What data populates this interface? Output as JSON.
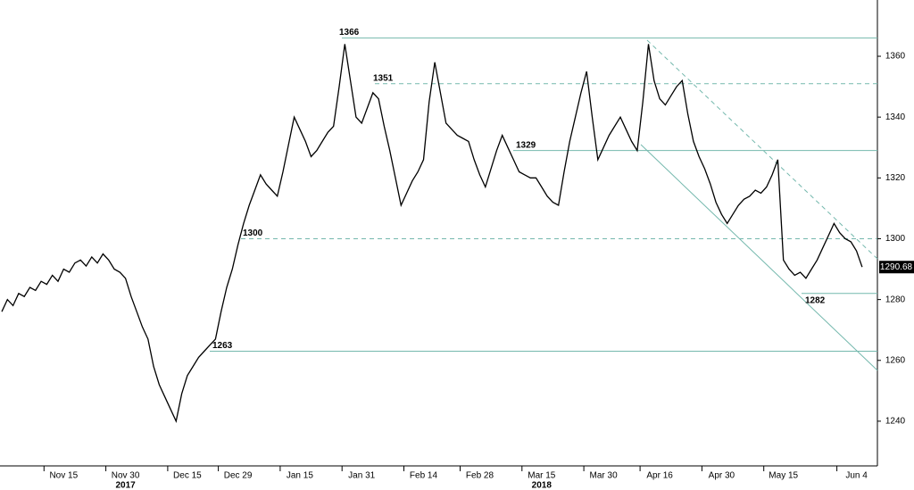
{
  "chart_data": {
    "type": "line",
    "categories": [
      null,
      null,
      null,
      null,
      null,
      null,
      null,
      null,
      null,
      null,
      null,
      "Nov 15",
      null,
      null,
      null,
      null,
      null,
      null,
      null,
      null,
      null,
      null,
      "Nov 30",
      null,
      null,
      null,
      null,
      null,
      null,
      null,
      null,
      null,
      null,
      "Dec 15",
      null,
      null,
      null,
      null,
      null,
      null,
      null,
      null,
      "Dec 29",
      null,
      null,
      null,
      null,
      null,
      null,
      null,
      null,
      null,
      null,
      "Jan 15",
      null,
      null,
      null,
      null,
      null,
      null,
      null,
      null,
      null,
      null,
      "Jan 31",
      null,
      null,
      null,
      null,
      null,
      null,
      null,
      null,
      null,
      null,
      "Feb 14",
      null,
      null,
      null,
      null,
      null,
      null,
      null,
      null,
      null,
      "Feb 28",
      null,
      null,
      null,
      null,
      null,
      null,
      null,
      null,
      null,
      null,
      "Mar 15",
      null,
      null,
      null,
      null,
      null,
      null,
      null,
      null,
      null,
      null,
      "Mar 30",
      null,
      null,
      null,
      null,
      null,
      null,
      null,
      null,
      null,
      "Apr 16",
      null,
      null,
      null,
      null,
      null,
      null,
      null,
      null,
      null,
      null,
      "Apr 30",
      null,
      null,
      null,
      null,
      null,
      null,
      null,
      null,
      null,
      null,
      "May 15",
      null,
      null,
      null,
      null,
      null,
      null,
      null,
      null,
      null,
      null,
      null,
      null,
      "Jun 4",
      null
    ],
    "year_labels": [
      "2017",
      "2018"
    ],
    "series": [
      {
        "color": "#000000",
        "values": [
          1276,
          1280,
          1278,
          1282,
          1281,
          1284,
          1283,
          1286,
          1285,
          1288,
          1286,
          1290,
          1289,
          1292,
          1293,
          1291,
          1294,
          1292,
          1295,
          1293,
          1290,
          1289,
          1287,
          1281,
          1276,
          1271,
          1267,
          1258,
          1252,
          1248,
          1244,
          1240,
          1249,
          1255,
          1258,
          1261,
          1263,
          1265,
          1267,
          1276,
          1284,
          1290,
          1298,
          1305,
          1311,
          1316,
          1321,
          1318,
          1316,
          1314,
          1322,
          1331,
          1340,
          1336,
          1332,
          1327,
          1329,
          1332,
          1335,
          1337,
          1350,
          1364,
          1352,
          1340,
          1338,
          1343,
          1348,
          1346,
          1337,
          1329,
          1320,
          1311,
          1315,
          1319,
          1322,
          1326,
          1345,
          1358,
          1348,
          1338,
          1336,
          1334,
          1333,
          1332,
          1326,
          1321,
          1317,
          1323,
          1329,
          1334,
          1330,
          1326,
          1322,
          1321,
          1320,
          1320,
          1317,
          1314,
          1312,
          1311,
          1322,
          1332,
          1340,
          1348,
          1355,
          1340,
          1326,
          1330,
          1334,
          1337,
          1340,
          1336,
          1332,
          1329,
          1345,
          1364,
          1352,
          1346,
          1344,
          1347,
          1350,
          1352,
          1341,
          1332,
          1327,
          1323,
          1318,
          1312,
          1308,
          1305,
          1308,
          1311,
          1313,
          1314,
          1316,
          1315,
          1317,
          1321,
          1326,
          1293,
          1290,
          1288,
          1289,
          1287,
          1290,
          1293,
          1297,
          1301,
          1305,
          1302,
          1300,
          1299,
          1296,
          1290.68
        ]
      }
    ],
    "ylim": [
      1225.3,
      1378.5
    ],
    "yticks": [
      1240,
      1260,
      1280,
      1300,
      1320,
      1340,
      1360
    ],
    "levels": [
      {
        "value": 1366,
        "dashed": false
      },
      {
        "value": 1351,
        "dashed": true
      },
      {
        "value": 1329,
        "dashed": false
      },
      {
        "value": 1300,
        "dashed": true
      },
      {
        "value": 1282,
        "dashed": false
      },
      {
        "value": 1263,
        "dashed": false
      }
    ],
    "level_color": "#74b8ad"
  }
}
